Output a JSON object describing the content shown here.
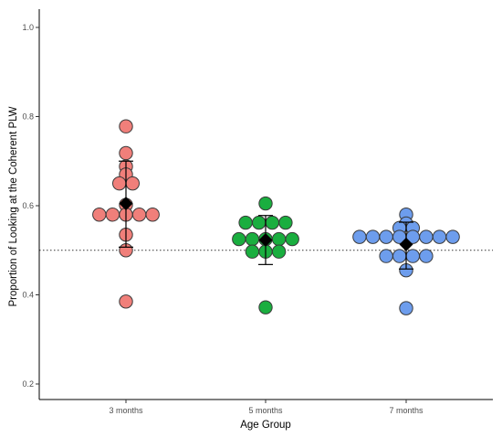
{
  "chart_data": {
    "type": "scatter",
    "xlabel": "Age Group",
    "ylabel": "Proportion of Looking at the Coherent PLW",
    "categories": [
      "3 months",
      "5 months",
      "7 months"
    ],
    "ylim": [
      0.17,
      1.03
    ],
    "yticks": [
      0.2,
      0.4,
      0.6,
      0.8,
      1.0
    ],
    "ytick_labels": [
      "0.2",
      "0.4",
      "0.6",
      "0.8",
      "1.0"
    ],
    "reference_line": 0.5,
    "grid": false,
    "legend": "none",
    "series": [
      {
        "category": "3 months",
        "color": "#f07f7a",
        "points": [
          0.778,
          0.718,
          0.688,
          0.67,
          0.65,
          0.65,
          0.602,
          0.58,
          0.58,
          0.58,
          0.58,
          0.58,
          0.535,
          0.5,
          0.385
        ],
        "mean": 0.605,
        "error": [
          0.507,
          0.7
        ]
      },
      {
        "category": "5 months",
        "color": "#1aae3f",
        "points": [
          0.605,
          0.562,
          0.562,
          0.562,
          0.562,
          0.525,
          0.525,
          0.525,
          0.525,
          0.525,
          0.497,
          0.497,
          0.497,
          0.372
        ],
        "mean": 0.523,
        "error": [
          0.468,
          0.578
        ]
      },
      {
        "category": "7 months",
        "color": "#6d9ded",
        "points": [
          0.58,
          0.56,
          0.55,
          0.55,
          0.53,
          0.53,
          0.53,
          0.53,
          0.53,
          0.53,
          0.53,
          0.53,
          0.487,
          0.487,
          0.487,
          0.487,
          0.455,
          0.37
        ],
        "mean": 0.513,
        "error": [
          0.458,
          0.563
        ]
      }
    ]
  }
}
